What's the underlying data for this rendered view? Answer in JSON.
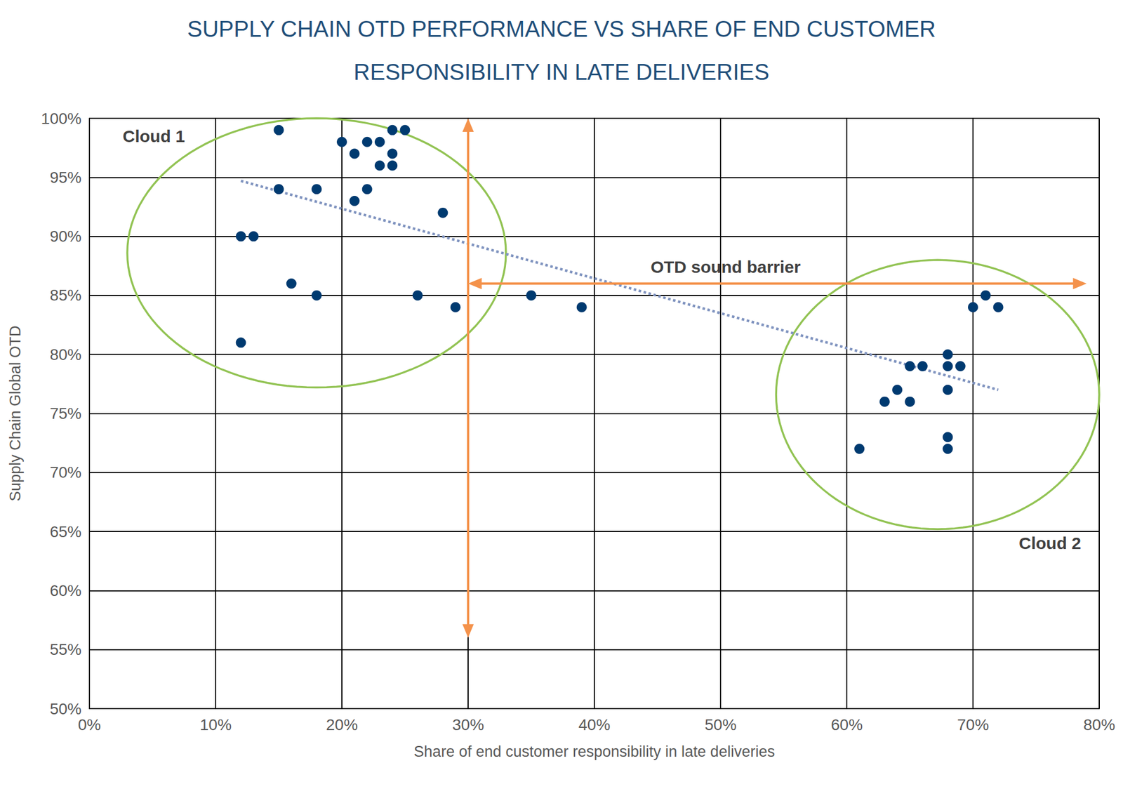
{
  "chart_data": {
    "type": "scatter",
    "title": "SUPPLY CHAIN OTD PERFORMANCE VS SHARE OF END CUSTOMER\nRESPONSIBILITY IN LATE DELIVERIES",
    "x_label": "Share of end customer responsibility in late deliveries",
    "y_label": "Supply Chain Global OTD",
    "xlim": [
      0,
      80
    ],
    "xticks": [
      {
        "value": 0,
        "label": "0%"
      },
      {
        "value": 10,
        "label": "10%"
      },
      {
        "value": 20,
        "label": "20%"
      },
      {
        "value": 30,
        "label": "30%"
      },
      {
        "value": 40,
        "label": "40%"
      },
      {
        "value": 50,
        "label": "50%"
      },
      {
        "value": 60,
        "label": "60%"
      },
      {
        "value": 70,
        "label": "70%"
      },
      {
        "value": 80,
        "label": "80%"
      }
    ],
    "ylim": [
      50,
      100
    ],
    "yticks": [
      {
        "value": 50,
        "label": "50%"
      },
      {
        "value": 55,
        "label": "55%"
      },
      {
        "value": 60,
        "label": "60%"
      },
      {
        "value": 65,
        "label": "65%"
      },
      {
        "value": 70,
        "label": "70%"
      },
      {
        "value": 75,
        "label": "75%"
      },
      {
        "value": 80,
        "label": "80%"
      },
      {
        "value": 85,
        "label": "85%"
      },
      {
        "value": 90,
        "label": "90%"
      },
      {
        "value": 95,
        "label": "95%"
      },
      {
        "value": 100,
        "label": "100%"
      }
    ],
    "grid": true,
    "series": [
      {
        "type": "scatter",
        "color": "#003a70",
        "marker": "circle",
        "x": [
          15,
          20,
          22,
          23,
          24,
          25,
          21,
          24,
          23,
          24,
          15,
          18,
          22,
          21,
          28,
          12,
          13,
          16,
          18,
          26,
          29,
          12,
          35,
          39,
          61,
          63,
          64,
          65,
          65,
          66,
          68,
          68,
          69,
          68,
          68,
          68,
          70,
          71,
          72
        ],
        "values": [
          99,
          98,
          98,
          98,
          99,
          99,
          97,
          97,
          96,
          96,
          94,
          94,
          94,
          93,
          92,
          90,
          90,
          86,
          85,
          85,
          84,
          81,
          85,
          84,
          72,
          76,
          77,
          76,
          79,
          79,
          80,
          79,
          79,
          77,
          73,
          72,
          84,
          85,
          84
        ]
      },
      {
        "type": "line",
        "color": "#7f93bf",
        "line_style": "dotted",
        "x": [
          12,
          72
        ],
        "values": [
          94.7,
          77
        ]
      }
    ],
    "clouds": [
      {
        "center": [
          18,
          88.6
        ],
        "radius": [
          15,
          11.4
        ],
        "color": "#92c353"
      },
      {
        "center": [
          67.2,
          76.6
        ],
        "radius": [
          12.8,
          11.4
        ],
        "color": "#92c353"
      }
    ],
    "arrows": [
      {
        "from": [
          30,
          100
        ],
        "to": [
          30,
          56
        ],
        "color": "#f4924b"
      },
      {
        "from": [
          30,
          86
        ],
        "to": [
          79,
          86
        ],
        "color": "#f4924b"
      }
    ],
    "annotations": [
      {
        "text": "Cloud 1",
        "x": 5.1,
        "y": 98.5
      },
      {
        "text": "Cloud 2",
        "x": 76.1,
        "y": 64
      },
      {
        "text": "OTD sound barrier",
        "x": 50.4,
        "y": 87.4
      }
    ]
  }
}
